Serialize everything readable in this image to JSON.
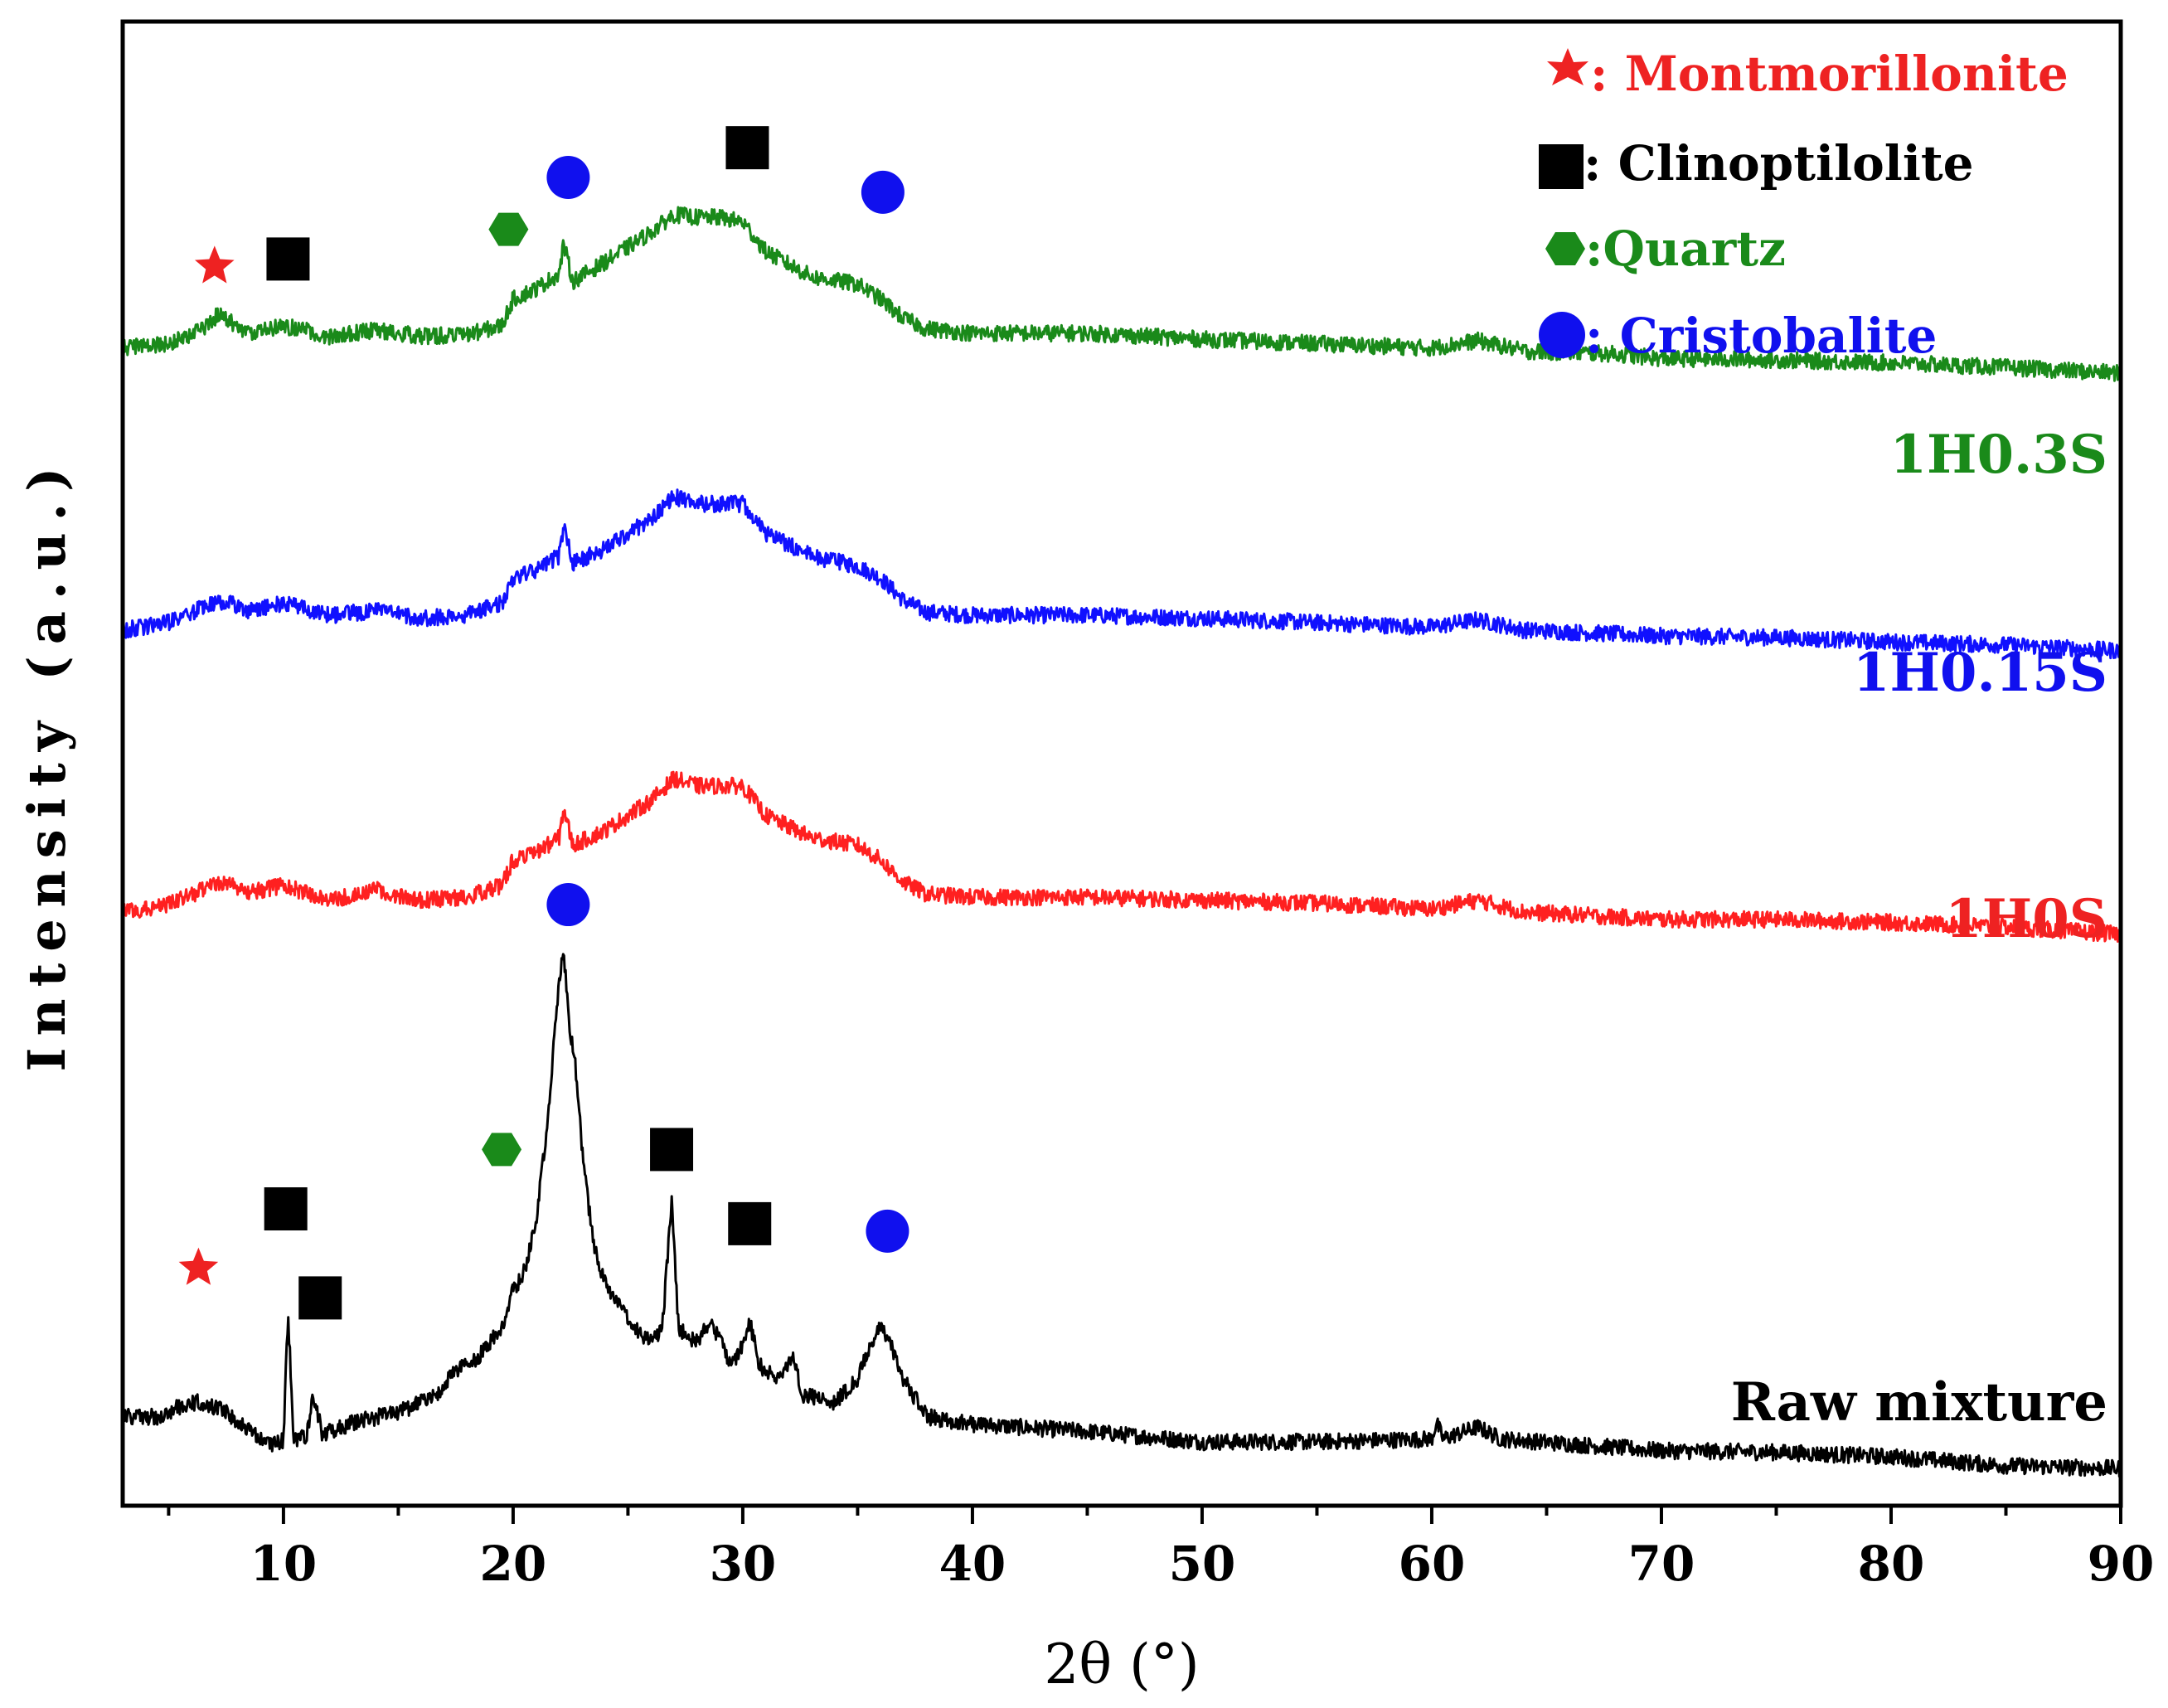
{
  "chart_data": {
    "type": "line",
    "title": "",
    "xlabel": "2θ (°)",
    "ylabel": "Intensity (a.u.)",
    "xlim": [
      3,
      90
    ],
    "ylim": [
      0,
      100
    ],
    "x_ticks": [
      10,
      20,
      30,
      40,
      50,
      60,
      70,
      80,
      90
    ],
    "x_tick_labels": [
      "10",
      "20",
      "30",
      "40",
      "50",
      "60",
      "70",
      "80",
      "90"
    ],
    "series": [
      {
        "name": "Raw mixture",
        "label": "Raw mixture",
        "color": "#000000",
        "base": 2,
        "noise": 0.55,
        "points": [
          [
            3,
            6
          ],
          [
            4.5,
            6
          ],
          [
            5.5,
            6.7
          ],
          [
            6.3,
            7
          ],
          [
            7.5,
            6.3
          ],
          [
            8.5,
            5
          ],
          [
            9.5,
            4
          ],
          [
            10,
            4.4
          ],
          [
            10.2,
            13
          ],
          [
            10.45,
            4.4
          ],
          [
            11,
            4.6
          ],
          [
            11.3,
            7.5
          ],
          [
            11.7,
            4.8
          ],
          [
            13,
            5.6
          ],
          [
            15,
            6.3
          ],
          [
            16.5,
            7.3
          ],
          [
            17.5,
            9
          ],
          [
            18.5,
            10
          ],
          [
            19.5,
            12
          ],
          [
            20,
            14.5
          ],
          [
            20.5,
            15.8
          ],
          [
            21,
            19
          ],
          [
            21.5,
            26
          ],
          [
            22,
            35.5
          ],
          [
            22.2,
            37.5
          ],
          [
            22.45,
            32
          ],
          [
            22.7,
            30
          ],
          [
            23,
            24
          ],
          [
            23.5,
            17.5
          ],
          [
            24,
            15
          ],
          [
            25,
            12.5
          ],
          [
            26,
            11
          ],
          [
            26.5,
            12
          ],
          [
            26.9,
            20.5
          ],
          [
            27.2,
            12
          ],
          [
            28,
            11
          ],
          [
            28.6,
            12.5
          ],
          [
            29.5,
            9.5
          ],
          [
            30,
            10.8
          ],
          [
            30.3,
            12.5
          ],
          [
            30.7,
            9.5
          ],
          [
            31.5,
            8.5
          ],
          [
            32.2,
            10
          ],
          [
            32.6,
            7.5
          ],
          [
            34,
            7
          ],
          [
            35,
            8.5
          ],
          [
            35.6,
            11
          ],
          [
            36,
            12
          ],
          [
            36.4,
            11
          ],
          [
            37,
            8.5
          ],
          [
            38,
            6
          ],
          [
            40,
            5.5
          ],
          [
            45,
            5
          ],
          [
            50,
            4.3
          ],
          [
            55,
            4.3
          ],
          [
            60,
            4.5
          ],
          [
            60.2,
            5.6
          ],
          [
            60.5,
            4.5
          ],
          [
            62,
            5.3
          ],
          [
            63,
            4.5
          ],
          [
            70,
            3.7
          ],
          [
            75,
            3.6
          ],
          [
            80,
            3.3
          ],
          [
            85,
            2.7
          ],
          [
            90,
            2.5
          ]
        ]
      },
      {
        "name": "1H0S",
        "label": "1H0S",
        "color": "#ff2020",
        "base": 40,
        "noise": 0.55,
        "points": [
          [
            3,
            40
          ],
          [
            5,
            40.5
          ],
          [
            6.5,
            41.5
          ],
          [
            7.5,
            42
          ],
          [
            8.5,
            41.3
          ],
          [
            10,
            41.8
          ],
          [
            12,
            40.8
          ],
          [
            14,
            41.5
          ],
          [
            16,
            40.8
          ],
          [
            18,
            41
          ],
          [
            19.5,
            41.8
          ],
          [
            20,
            43.5
          ],
          [
            21,
            44
          ],
          [
            22,
            45
          ],
          [
            22.2,
            47
          ],
          [
            22.6,
            44.5
          ],
          [
            24,
            45.5
          ],
          [
            26,
            47.5
          ],
          [
            27,
            49
          ],
          [
            28,
            48.5
          ],
          [
            29,
            48.5
          ],
          [
            30,
            48.5
          ],
          [
            31,
            46.5
          ],
          [
            33,
            45
          ],
          [
            35,
            44.5
          ],
          [
            36,
            43.5
          ],
          [
            37,
            42
          ],
          [
            38,
            41.2
          ],
          [
            40,
            41
          ],
          [
            45,
            41
          ],
          [
            50,
            40.8
          ],
          [
            55,
            40.6
          ],
          [
            60,
            40.2
          ],
          [
            62,
            40.8
          ],
          [
            64,
            40
          ],
          [
            70,
            39.5
          ],
          [
            75,
            39.5
          ],
          [
            80,
            39.3
          ],
          [
            85,
            39
          ],
          [
            90,
            38.5
          ]
        ]
      },
      {
        "name": "1H0.15S",
        "label": "1H0.15S",
        "color": "#1010ff",
        "base": 59,
        "noise": 0.55,
        "points": [
          [
            3,
            59
          ],
          [
            5,
            59.5
          ],
          [
            6.5,
            60.5
          ],
          [
            7.5,
            61
          ],
          [
            8.5,
            60.3
          ],
          [
            10,
            60.8
          ],
          [
            12,
            60
          ],
          [
            14,
            60.3
          ],
          [
            16,
            59.8
          ],
          [
            18,
            60
          ],
          [
            19.5,
            60.8
          ],
          [
            20,
            62.5
          ],
          [
            21,
            63
          ],
          [
            22,
            64
          ],
          [
            22.2,
            66
          ],
          [
            22.6,
            63.5
          ],
          [
            24,
            64.5
          ],
          [
            26,
            66.5
          ],
          [
            27,
            68
          ],
          [
            28,
            67.5
          ],
          [
            29,
            67.5
          ],
          [
            30,
            67.5
          ],
          [
            31,
            65.5
          ],
          [
            33,
            64
          ],
          [
            35,
            63.3
          ],
          [
            36,
            62.5
          ],
          [
            37,
            61
          ],
          [
            38,
            60.2
          ],
          [
            40,
            60
          ],
          [
            45,
            60
          ],
          [
            50,
            59.8
          ],
          [
            55,
            59.5
          ],
          [
            60,
            59.2
          ],
          [
            62,
            59.7
          ],
          [
            64,
            59
          ],
          [
            70,
            58.6
          ],
          [
            75,
            58.5
          ],
          [
            80,
            58.2
          ],
          [
            85,
            58
          ],
          [
            90,
            57.6
          ]
        ]
      },
      {
        "name": "1H0.3S",
        "label": "1H0.3S",
        "color": "#1a8a1a",
        "base": 78,
        "noise": 0.55,
        "points": [
          [
            3,
            78
          ],
          [
            5,
            78.3
          ],
          [
            6.5,
            79.3
          ],
          [
            7.2,
            80.3
          ],
          [
            8.5,
            79
          ],
          [
            10,
            79.5
          ],
          [
            12,
            78.8
          ],
          [
            14,
            79.2
          ],
          [
            16,
            78.8
          ],
          [
            18,
            78.9
          ],
          [
            19.5,
            79.5
          ],
          [
            20,
            81.3
          ],
          [
            21,
            82
          ],
          [
            22,
            83
          ],
          [
            22.2,
            85
          ],
          [
            22.6,
            82.5
          ],
          [
            24,
            83.8
          ],
          [
            26,
            85.8
          ],
          [
            27,
            87
          ],
          [
            28,
            86.8
          ],
          [
            29,
            86.8
          ],
          [
            30,
            86.5
          ],
          [
            31,
            84.5
          ],
          [
            33,
            82.8
          ],
          [
            35,
            82.3
          ],
          [
            36,
            81.3
          ],
          [
            37,
            80
          ],
          [
            38,
            79.3
          ],
          [
            40,
            79
          ],
          [
            45,
            79
          ],
          [
            50,
            78.6
          ],
          [
            55,
            78.3
          ],
          [
            60,
            78
          ],
          [
            62,
            78.5
          ],
          [
            64,
            77.8
          ],
          [
            68,
            77.6
          ],
          [
            70,
            77.3
          ],
          [
            75,
            77.2
          ],
          [
            80,
            77
          ],
          [
            85,
            76.7
          ],
          [
            90,
            76.3
          ]
        ]
      }
    ],
    "legend": {
      "position": "top-right",
      "entries": [
        {
          "text": ": Montmorillonite",
          "marker": "star",
          "color": "#ee2222"
        },
        {
          "text": ": Clinoptilolite",
          "marker": "square",
          "color": "#000000"
        },
        {
          "text": ":Quartz",
          "marker": "hexagon",
          "color": "#1a8a1a"
        },
        {
          "text": ": Cristobalite",
          "marker": "circle",
          "color": "#1010ee"
        }
      ]
    },
    "peak_annotations": [
      {
        "phase": "Montmorillonite",
        "marker": "star",
        "color": "#ee2222",
        "x": 6.3,
        "y": 16
      },
      {
        "phase": "Clinoptilolite",
        "marker": "square",
        "color": "#000000",
        "x": 10.1,
        "y": 20
      },
      {
        "phase": "Clinoptilolite",
        "marker": "square",
        "color": "#000000",
        "x": 11.6,
        "y": 14
      },
      {
        "phase": "Quartz",
        "marker": "hexagon",
        "color": "#1a8a1a",
        "x": 19.5,
        "y": 24
      },
      {
        "phase": "Cristobalite",
        "marker": "circle",
        "color": "#1010ee",
        "x": 22.4,
        "y": 40.5
      },
      {
        "phase": "Clinoptilolite",
        "marker": "square",
        "color": "#000000",
        "x": 26.9,
        "y": 24
      },
      {
        "phase": "Clinoptilolite",
        "marker": "square",
        "color": "#000000",
        "x": 30.3,
        "y": 19
      },
      {
        "phase": "Cristobalite",
        "marker": "circle",
        "color": "#1010ee",
        "x": 36.3,
        "y": 18.5
      },
      {
        "phase": "Montmorillonite",
        "marker": "star",
        "color": "#ee2222",
        "x": 7.0,
        "y": 83.5
      },
      {
        "phase": "Clinoptilolite",
        "marker": "square",
        "color": "#000000",
        "x": 10.2,
        "y": 84
      },
      {
        "phase": "Quartz",
        "marker": "hexagon",
        "color": "#1a8a1a",
        "x": 19.8,
        "y": 86
      },
      {
        "phase": "Cristobalite",
        "marker": "circle",
        "color": "#1010ee",
        "x": 22.4,
        "y": 89.5
      },
      {
        "phase": "Clinoptilolite",
        "marker": "square",
        "color": "#000000",
        "x": 30.2,
        "y": 91.5
      },
      {
        "phase": "Cristobalite",
        "marker": "circle",
        "color": "#1010ee",
        "x": 36.1,
        "y": 88.5
      }
    ]
  }
}
